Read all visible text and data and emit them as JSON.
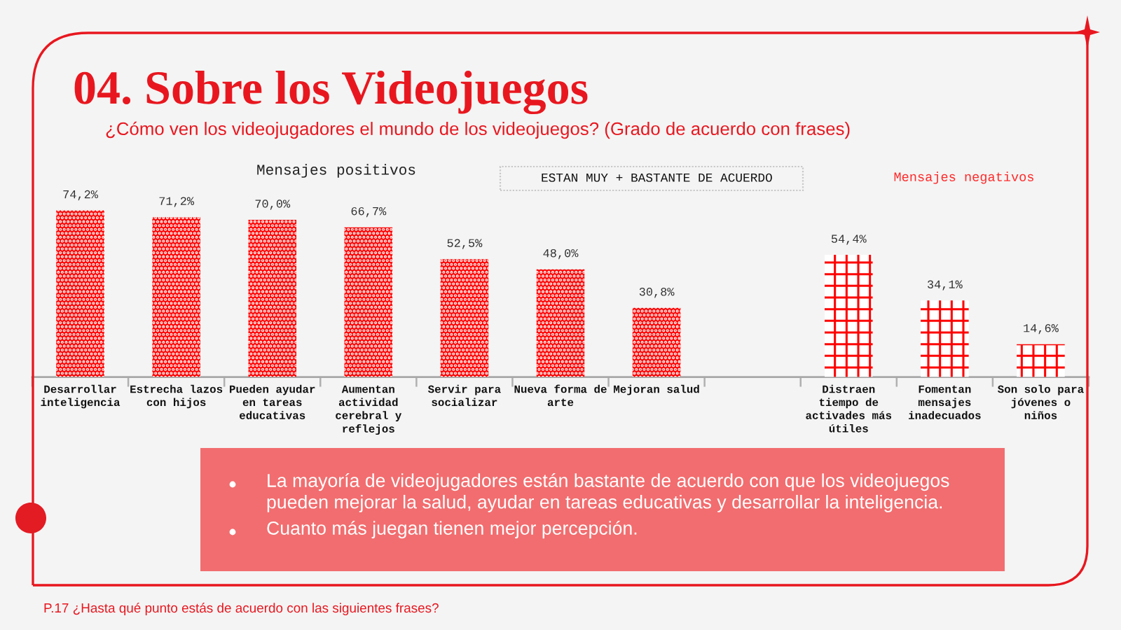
{
  "chart_data": {
    "type": "bar",
    "title": "04. Sobre los Videojuegos",
    "subtitle": "¿Cómo ven los videojugadores el mundo de los videojuegos? (Grado de acuerdo con frases)",
    "categories": [
      "Desarrollar\ninteligencia",
      "Estrecha lazos\ncon hijos",
      "Pueden ayudar\nen tareas\neducativas",
      "Aumentan\nactividad\ncerebral y\nreflejos",
      "Servir para\nsocializar",
      "Nueva forma de\narte",
      "Mejoran salud",
      null,
      "Distraen\ntiempo de\nactivades más\nútiles",
      "Fomentan\nmensajes\ninadecuados",
      "Son solo para\njóvenes o\nniños"
    ],
    "series": [
      {
        "color": "#ff0000",
        "values": [
          74.2,
          71.2,
          70.0,
          66.7,
          52.5,
          48.0,
          30.8,
          null,
          null,
          null,
          null
        ],
        "value_labels": [
          "74,2%",
          "71,2%",
          "70,0%",
          "66,7%",
          "52,5%",
          "48,0%",
          "30,8%",
          null,
          null,
          null,
          null
        ]
      },
      {
        "color": "#ff0000",
        "values": [
          null,
          null,
          null,
          null,
          null,
          null,
          null,
          null,
          54.4,
          34.1,
          14.6
        ],
        "value_labels": [
          null,
          null,
          null,
          null,
          null,
          null,
          null,
          null,
          "54,4%",
          "34,1%",
          "14,6%"
        ]
      }
    ],
    "tick_labels": "x",
    "annotations": [
      "Mensajes positivos",
      "ESTAN MUY + BASTANTE DE ACUERDO",
      "Mensajes negativos",
      "La mayoría de videojugadores están bastante de acuerdo con que los videojuegos pueden mejorar la salud, ayudar en tareas educativas y desarrollar la inteligencia.",
      "Cuanto más juegan tienen mejor percepción.",
      "P.17 ¿Hasta qué punto estás de acuerdo con las siguientes frases?"
    ]
  }
}
